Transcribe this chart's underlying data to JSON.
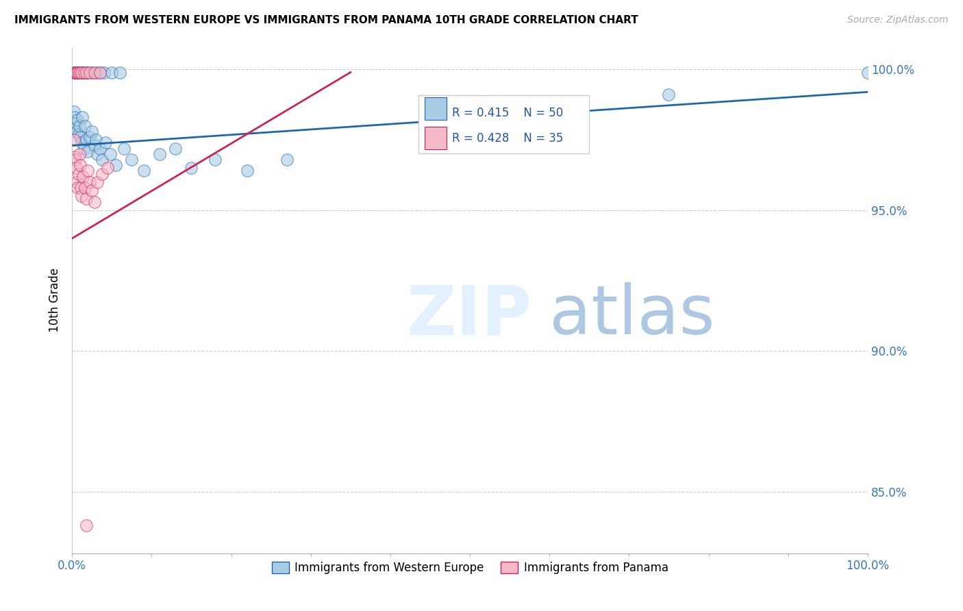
{
  "title": "IMMIGRANTS FROM WESTERN EUROPE VS IMMIGRANTS FROM PANAMA 10TH GRADE CORRELATION CHART",
  "source": "Source: ZipAtlas.com",
  "ylabel": "10th Grade",
  "yaxis_labels": [
    "100.0%",
    "95.0%",
    "90.0%",
    "85.0%"
  ],
  "yaxis_values": [
    1.0,
    0.95,
    0.9,
    0.85
  ],
  "legend_blue_label": "Immigrants from Western Europe",
  "legend_pink_label": "Immigrants from Panama",
  "R_blue": 0.415,
  "N_blue": 50,
  "R_pink": 0.428,
  "N_pink": 35,
  "blue_color": "#a8cce4",
  "pink_color": "#f4b8c8",
  "blue_line_color": "#2166ac",
  "pink_line_color": "#cc2255",
  "xlim": [
    0.0,
    1.0
  ],
  "ylim": [
    0.828,
    1.008
  ],
  "blue_points_x": [
    0.002,
    0.003,
    0.004,
    0.005,
    0.006,
    0.007,
    0.008,
    0.009,
    0.01,
    0.012,
    0.013,
    0.015,
    0.016,
    0.018,
    0.02,
    0.022,
    0.025,
    0.028,
    0.03,
    0.032,
    0.035,
    0.038,
    0.042,
    0.048,
    0.055,
    0.065,
    0.075,
    0.09,
    0.11,
    0.13,
    0.15,
    0.18,
    0.22,
    0.27,
    0.006,
    0.008,
    0.01,
    0.012,
    0.014,
    0.016,
    0.018,
    0.02,
    0.025,
    0.03,
    0.035,
    0.04,
    0.05,
    0.06,
    0.75,
    1.0
  ],
  "blue_points_y": [
    0.985,
    0.983,
    0.979,
    0.981,
    0.978,
    0.982,
    0.977,
    0.98,
    0.976,
    0.974,
    0.983,
    0.972,
    0.98,
    0.975,
    0.971,
    0.976,
    0.978,
    0.973,
    0.975,
    0.97,
    0.972,
    0.968,
    0.974,
    0.97,
    0.966,
    0.972,
    0.968,
    0.964,
    0.97,
    0.972,
    0.965,
    0.968,
    0.964,
    0.968,
    0.999,
    0.999,
    0.999,
    0.999,
    0.999,
    0.999,
    0.999,
    0.999,
    0.999,
    0.999,
    0.999,
    0.999,
    0.999,
    0.999,
    0.991,
    0.999
  ],
  "pink_points_x": [
    0.002,
    0.003,
    0.004,
    0.005,
    0.006,
    0.007,
    0.008,
    0.009,
    0.01,
    0.011,
    0.012,
    0.014,
    0.016,
    0.018,
    0.02,
    0.022,
    0.025,
    0.028,
    0.032,
    0.038,
    0.045,
    0.002,
    0.003,
    0.004,
    0.005,
    0.006,
    0.007,
    0.008,
    0.01,
    0.012,
    0.015,
    0.018,
    0.022,
    0.028,
    0.035
  ],
  "pink_points_y": [
    0.975,
    0.969,
    0.968,
    0.965,
    0.96,
    0.958,
    0.963,
    0.97,
    0.966,
    0.958,
    0.955,
    0.962,
    0.958,
    0.954,
    0.964,
    0.96,
    0.957,
    0.953,
    0.96,
    0.963,
    0.965,
    0.999,
    0.999,
    0.999,
    0.999,
    0.999,
    0.999,
    0.999,
    0.999,
    0.999,
    0.999,
    0.999,
    0.999,
    0.999,
    0.999
  ],
  "pink_outlier_x": [
    0.018
  ],
  "pink_outlier_y": [
    0.838
  ],
  "trend_blue_x0": 0.0,
  "trend_blue_y0": 0.973,
  "trend_blue_x1": 1.0,
  "trend_blue_y1": 0.992,
  "trend_pink_x0": 0.0,
  "trend_pink_y0": 0.94,
  "trend_pink_x1": 0.35,
  "trend_pink_y1": 0.999
}
